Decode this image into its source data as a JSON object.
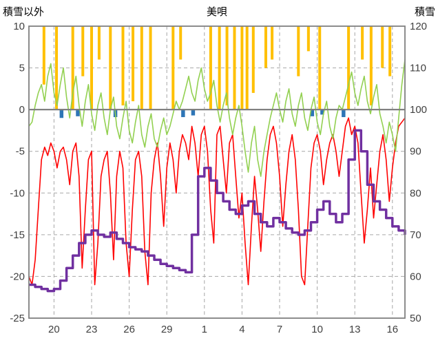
{
  "chart_data": {
    "type": "line",
    "title": "美唄",
    "left_axis": {
      "label": "積雪以外",
      "min": -25,
      "max": 10,
      "ticks": [
        10,
        5,
        0,
        -5,
        -10,
        -15,
        -20,
        -25
      ],
      "tick_labels": [
        "10",
        "5",
        "0",
        "-5",
        "-10",
        "-15",
        "-20",
        "-25"
      ]
    },
    "right_axis": {
      "label": "積雪",
      "min": 50,
      "max": 120,
      "ticks": [
        120,
        110,
        100,
        90,
        80,
        70,
        60,
        50
      ],
      "tick_labels": [
        "120",
        "110",
        "100",
        "90",
        "80",
        "70",
        "60",
        "50"
      ]
    },
    "x_axis": {
      "min": 0,
      "max": 30,
      "tick_positions": [
        2,
        5,
        8,
        11,
        14,
        17,
        20,
        23,
        26,
        29
      ],
      "tick_labels": [
        "20",
        "23",
        "26",
        "29",
        "1",
        "4",
        "7",
        "10",
        "13",
        "16"
      ]
    },
    "grid": {
      "color": "#a6a6a6",
      "zero_line_color": "#808080",
      "border_color": "#808080"
    },
    "series": [
      {
        "name": "snowfall-bars",
        "type": "bar-from-top",
        "axis": "left",
        "color": "#FFC000",
        "bar_width_days": 0.22,
        "top_value": 10,
        "points": [
          [
            1.2,
            3
          ],
          [
            2.2,
            0
          ],
          [
            3.5,
            0
          ],
          [
            4.3,
            4
          ],
          [
            5.0,
            0
          ],
          [
            5.6,
            6
          ],
          [
            6.5,
            0
          ],
          [
            7.5,
            0.5
          ],
          [
            8.3,
            1
          ],
          [
            9.0,
            0
          ],
          [
            9.7,
            0
          ],
          [
            11.5,
            0
          ],
          [
            12.1,
            6
          ],
          [
            14.5,
            0
          ],
          [
            15.2,
            0
          ],
          [
            15.8,
            0.5
          ],
          [
            16.4,
            0
          ],
          [
            17.0,
            0
          ],
          [
            17.4,
            0
          ],
          [
            17.9,
            2
          ],
          [
            18.9,
            5
          ],
          [
            19.4,
            6
          ],
          [
            21.5,
            4
          ],
          [
            22.3,
            7
          ],
          [
            23.2,
            0
          ],
          [
            25.5,
            0
          ],
          [
            26.6,
            6
          ],
          [
            27.3,
            0.5
          ],
          [
            28.2,
            5
          ],
          [
            28.8,
            4
          ]
        ]
      },
      {
        "name": "rain-bars",
        "type": "bar-from-zero",
        "axis": "left",
        "color": "#2E75B6",
        "bar_width_days": 0.3,
        "points": [
          [
            2.6,
            -1
          ],
          [
            3.9,
            -0.8
          ],
          [
            6.9,
            -0.9
          ],
          [
            12.3,
            -0.9
          ],
          [
            13.1,
            -0.7
          ],
          [
            22.6,
            -0.8
          ],
          [
            23.4,
            -0.6
          ],
          [
            25.1,
            -0.9
          ]
        ]
      },
      {
        "name": "red-line",
        "type": "line",
        "axis": "left",
        "color": "#FF0000",
        "width": 1.6,
        "x_start": 0,
        "x_step": 0.25,
        "values": [
          -20,
          -21,
          -18,
          -12,
          -6,
          -4.5,
          -5.5,
          -4,
          -5,
          -7,
          -5,
          -4.5,
          -6,
          -9,
          -5,
          -4,
          -8,
          -19,
          -12,
          -6,
          -5,
          -21,
          -16,
          -8,
          -6,
          -5,
          -10,
          -18,
          -8,
          -5,
          -7,
          -16,
          -20,
          -12,
          -6,
          -5,
          -8,
          -17,
          -21,
          -10,
          -6,
          -4,
          -8,
          -14,
          -7,
          -4,
          -6,
          -10,
          -5,
          -3,
          -4,
          -6,
          -2,
          -4,
          -8,
          -3,
          -2,
          -5,
          -12,
          -16,
          -3,
          -2,
          -6,
          -10,
          -4,
          -3,
          -8,
          -13,
          -10,
          -16,
          -21,
          -14,
          -8,
          -12,
          -17,
          -11,
          -6,
          -3,
          -2,
          -4,
          -8,
          -14,
          -9,
          -5,
          -3,
          -6,
          -12,
          -20,
          -21,
          -14,
          -7,
          -4,
          -3,
          -5,
          -9,
          -6,
          -4,
          -3,
          -5,
          -8,
          -5,
          -2,
          -1,
          -3,
          -2,
          -4,
          -10,
          -16,
          -12,
          -7,
          -13,
          -9,
          -5,
          -3,
          -6,
          -11,
          -7,
          -4,
          -2,
          -1.5,
          -1
        ]
      },
      {
        "name": "green-line",
        "type": "line",
        "axis": "left",
        "color": "#92D050",
        "width": 1.6,
        "x_start": 0,
        "x_step": 0.25,
        "values": [
          -2,
          -1.5,
          0.5,
          2,
          3,
          1,
          4,
          5.5,
          2,
          0.5,
          3,
          5,
          1.5,
          -1,
          2,
          4,
          0.5,
          -2,
          1,
          3,
          -0.5,
          -2.5,
          0.5,
          2,
          -1,
          -3,
          0,
          1.5,
          -2,
          -3.5,
          -1,
          1,
          -2.5,
          -4,
          -1.5,
          0.5,
          -3,
          -4.5,
          -2,
          -0.5,
          -3.5,
          -4.5,
          -2.5,
          -1,
          -3,
          -2,
          -0.5,
          1,
          0,
          1,
          2.5,
          4,
          2,
          1,
          3.5,
          5,
          2.5,
          1,
          2,
          3.5,
          0.5,
          -1.5,
          0.5,
          2,
          -1,
          -3,
          -1,
          0.5,
          -2,
          -5,
          -7.5,
          -4,
          -2,
          -6,
          -8,
          -5,
          -3,
          -1,
          0.5,
          2,
          0,
          -1.5,
          1,
          2.5,
          -0.5,
          -2,
          0.5,
          2,
          -1,
          -2.5,
          0,
          1.5,
          -1.5,
          -3,
          -0.5,
          1,
          -2,
          -3.5,
          -1,
          0.5,
          0,
          1.5,
          3,
          4.5,
          2,
          0.5,
          2.5,
          4,
          1,
          -0.5,
          1.5,
          3,
          -0.5,
          -2,
          -4,
          -1.5,
          -3,
          -5,
          -1,
          3,
          6
        ]
      },
      {
        "name": "snow-depth-line",
        "type": "step-line",
        "axis": "right",
        "color": "#7030A0",
        "width": 3.5,
        "x_start": 0,
        "x_step": 0.5,
        "values": [
          58,
          57.5,
          57,
          56.5,
          57,
          59,
          62,
          65,
          68,
          70,
          71,
          70,
          69.5,
          70.5,
          69,
          68,
          67,
          66.5,
          66,
          65,
          64,
          63,
          62.5,
          62,
          61.5,
          61,
          70,
          84,
          86,
          83,
          80,
          78,
          76,
          75,
          77,
          78,
          75,
          73,
          72,
          74,
          73,
          71.5,
          70.5,
          70,
          71,
          73,
          76,
          78,
          75,
          73,
          75,
          88,
          95,
          90,
          82,
          78,
          76,
          74,
          72,
          71,
          70
        ]
      }
    ]
  }
}
